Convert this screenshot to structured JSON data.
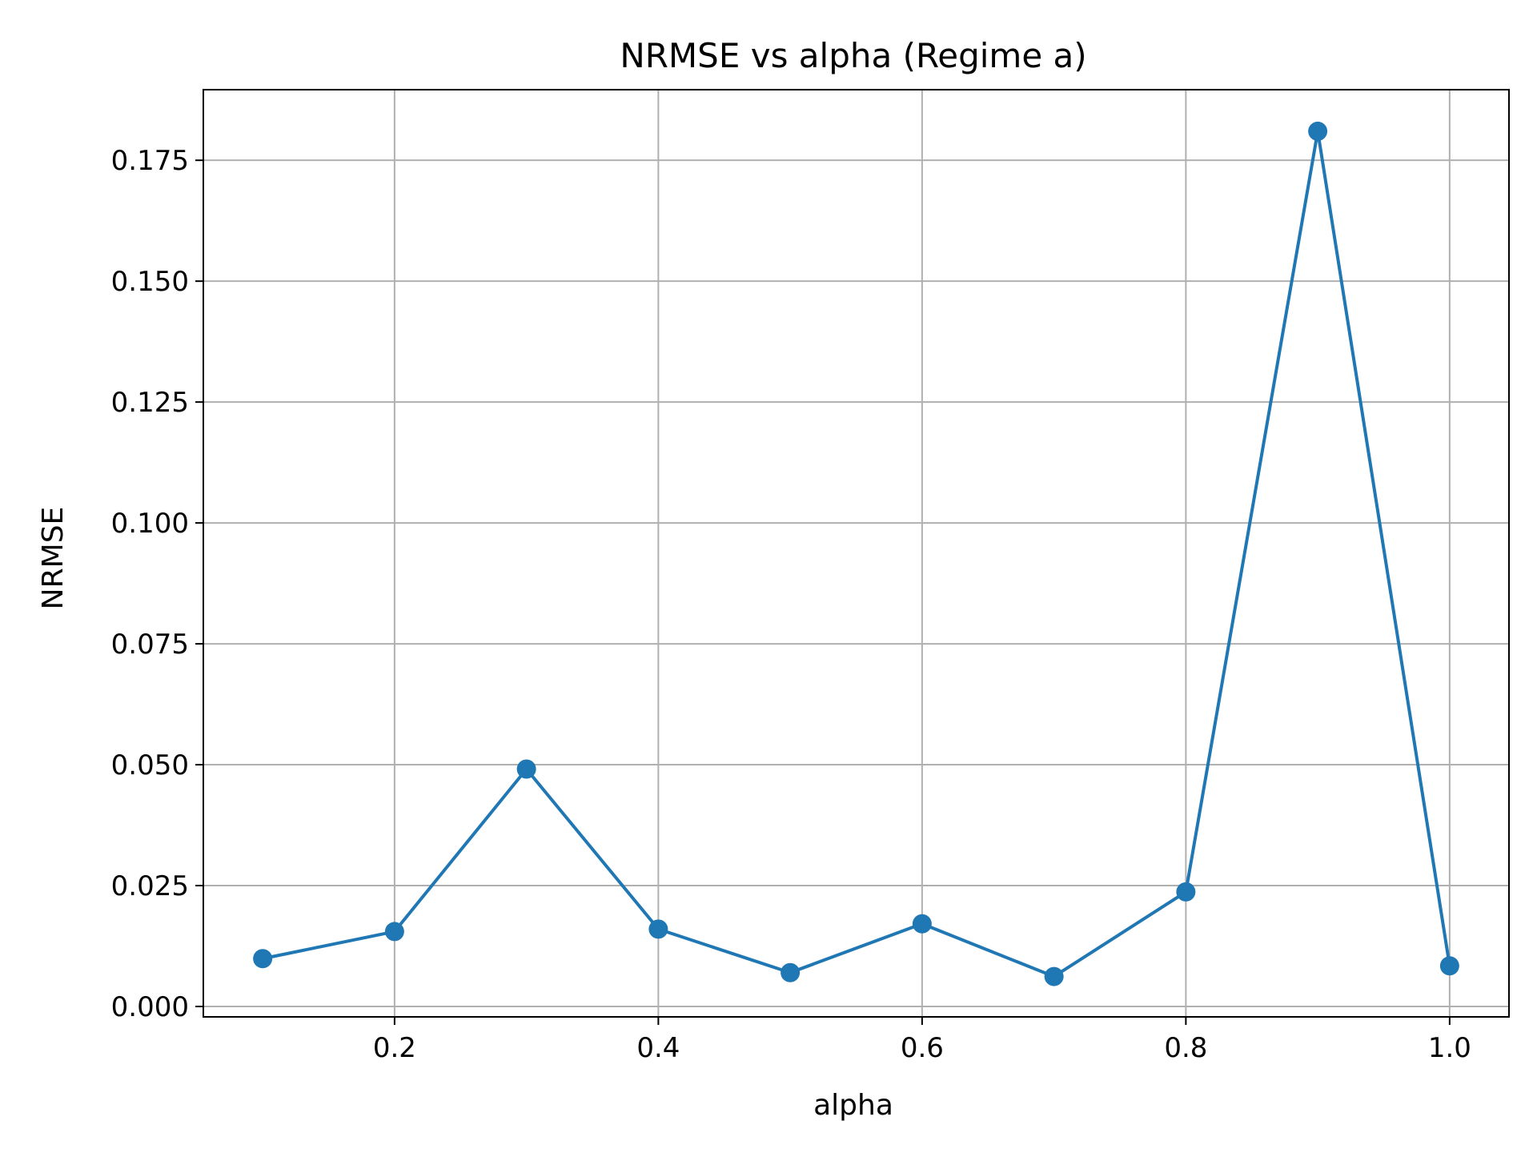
{
  "chart_data": {
    "type": "line",
    "title": "NRMSE vs alpha (Regime a)",
    "xlabel": "alpha",
    "ylabel": "NRMSE",
    "xlim": [
      0.055,
      1.045
    ],
    "ylim": [
      -0.00215,
      0.1896
    ],
    "x_ticks": [
      0.2,
      0.4,
      0.6,
      0.8,
      1.0
    ],
    "x_tick_labels": [
      "0.2",
      "0.4",
      "0.6",
      "0.8",
      "1.0"
    ],
    "y_ticks": [
      0.0,
      0.025,
      0.05,
      0.075,
      0.1,
      0.125,
      0.15,
      0.175
    ],
    "y_tick_labels": [
      "0.000",
      "0.025",
      "0.050",
      "0.075",
      "0.100",
      "0.125",
      "0.150",
      "0.175"
    ],
    "grid": true,
    "series": [
      {
        "color": "#1f77b4",
        "marker": "circle",
        "x": [
          0.1,
          0.2,
          0.3,
          0.4,
          0.5,
          0.6,
          0.7,
          0.8,
          0.9,
          1.0
        ],
        "y": [
          0.0099,
          0.0155,
          0.0491,
          0.016,
          0.007,
          0.0171,
          0.0062,
          0.0237,
          0.181,
          0.0084
        ]
      }
    ]
  }
}
